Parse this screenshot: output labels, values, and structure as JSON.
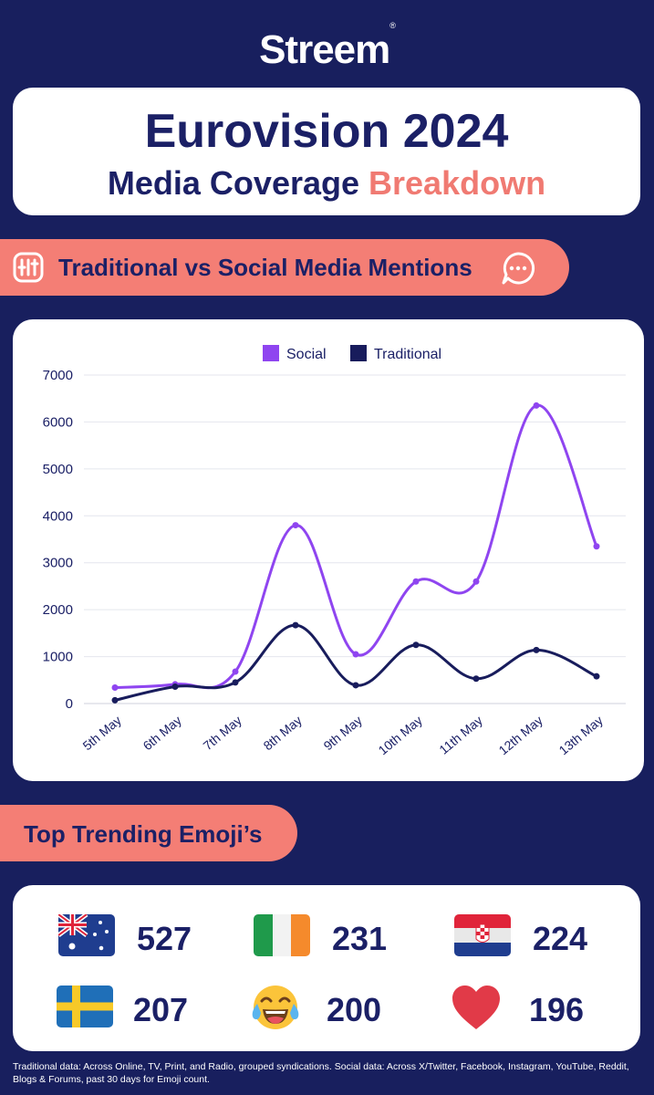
{
  "brand": {
    "logo_text": "Streem",
    "registered_mark": "®"
  },
  "header": {
    "title": "Eurovision 2024",
    "subtitle_prefix": "Media Coverage",
    "subtitle_accent": "Breakdown"
  },
  "section": {
    "label": "Traditional vs Social Media Mentions"
  },
  "colors": {
    "background": "#181f5e",
    "navy": "#1b2066",
    "accent": "#f47e75",
    "social": "#8f45f0",
    "traditional": "#181c5c"
  },
  "chart_data": {
    "type": "line",
    "x": [
      "5th May",
      "6th May",
      "7th May",
      "8th May",
      "9th May",
      "10th May",
      "11th May",
      "12th May",
      "13th May"
    ],
    "series": [
      {
        "name": "Social",
        "values": [
          340,
          410,
          680,
          3800,
          1050,
          2600,
          2600,
          6350,
          3350
        ]
      },
      {
        "name": "Traditional",
        "values": [
          70,
          360,
          450,
          1670,
          390,
          1250,
          530,
          1140,
          580
        ]
      }
    ],
    "yticks": [
      "0",
      "1000",
      "2000",
      "3000",
      "4000",
      "5000",
      "6000",
      "7000"
    ],
    "ylim": [
      0,
      7000
    ],
    "grid": true,
    "legend_position": "top-center",
    "smooth": true
  },
  "emoji_section": {
    "label": "Top Trending Emoji’s"
  },
  "emojis": [
    {
      "icon": "australia-flag-icon",
      "count": "527"
    },
    {
      "icon": "ireland-flag-icon",
      "count": "231"
    },
    {
      "icon": "croatia-flag-icon",
      "count": "224"
    },
    {
      "icon": "sweden-flag-icon",
      "count": "207"
    },
    {
      "icon": "tears-of-joy-icon",
      "count": "200"
    },
    {
      "icon": "red-heart-icon",
      "count": "196"
    }
  ],
  "footnote": "Traditional data: Across Online, TV, Print, and Radio, grouped syndications. Social data: Across X/Twitter, Facebook, Instagram, YouTube, Reddit, Blogs & Forums, past 30 days for Emoji count."
}
